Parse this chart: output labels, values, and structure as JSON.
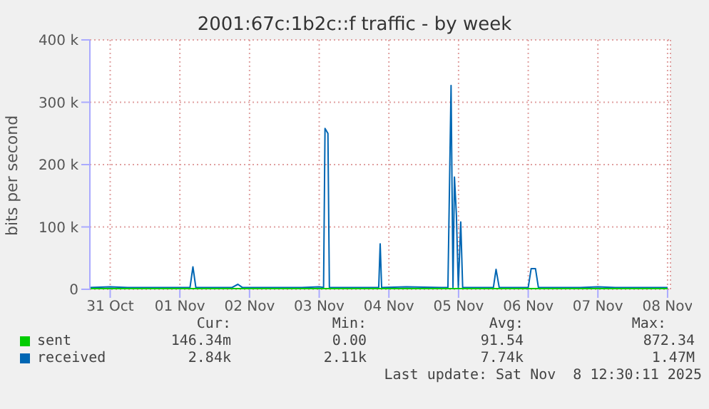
{
  "chart_data": {
    "type": "line",
    "title": "2001:67c:1b2c::f traffic - by week",
    "ylabel": "bits per second",
    "xlim": [
      "2025-10-31T05:00",
      "2025-11-08T13:00"
    ],
    "xticks": [
      {
        "value": "2025-10-31T12:00",
        "label": "31 Oct"
      },
      {
        "value": "2025-11-01T12:00",
        "label": "01 Nov"
      },
      {
        "value": "2025-11-02T12:00",
        "label": "02 Nov"
      },
      {
        "value": "2025-11-03T12:00",
        "label": "03 Nov"
      },
      {
        "value": "2025-11-04T12:00",
        "label": "04 Nov"
      },
      {
        "value": "2025-11-05T12:00",
        "label": "05 Nov"
      },
      {
        "value": "2025-11-06T12:00",
        "label": "06 Nov"
      },
      {
        "value": "2025-11-07T12:00",
        "label": "07 Nov"
      },
      {
        "value": "2025-11-08T12:00",
        "label": "08 Nov"
      }
    ],
    "ylim": [
      0,
      400000
    ],
    "yticks": [
      {
        "value": 0,
        "label": "0"
      },
      {
        "value": 100000,
        "label": "100 k"
      },
      {
        "value": 200000,
        "label": "200 k"
      },
      {
        "value": 300000,
        "label": "300 k"
      },
      {
        "value": 400000,
        "label": "400 k"
      }
    ],
    "grid": true,
    "legend": "bottom left",
    "marker": "none",
    "line_style": "solid",
    "x": [
      "2025-10-31T05:00",
      "2025-10-31T12:00",
      "2025-10-31T18:00",
      "2025-11-01T00:00",
      "2025-11-01T12:00",
      "2025-11-01T15:30",
      "2025-11-01T16:30",
      "2025-11-01T17:30",
      "2025-11-01T22:00",
      "2025-11-02T06:00",
      "2025-11-02T08:00",
      "2025-11-02T09:30",
      "2025-11-02T18:00",
      "2025-11-03T06:00",
      "2025-11-03T12:00",
      "2025-11-03T13:30",
      "2025-11-03T14:00",
      "2025-11-03T15:00",
      "2025-11-03T15:30",
      "2025-11-03T22:00",
      "2025-11-04T06:00",
      "2025-11-04T08:30",
      "2025-11-04T09:00",
      "2025-11-04T09:30",
      "2025-11-04T18:00",
      "2025-11-05T06:00",
      "2025-11-05T08:20",
      "2025-11-05T09:25",
      "2025-11-05T10:05",
      "2025-11-05T10:35",
      "2025-11-05T11:15",
      "2025-11-05T11:55",
      "2025-11-05T12:45",
      "2025-11-05T13:25",
      "2025-11-05T18:00",
      "2025-11-06T00:00",
      "2025-11-06T00:55",
      "2025-11-06T02:00",
      "2025-11-06T12:00",
      "2025-11-06T13:00",
      "2025-11-06T14:30",
      "2025-11-06T15:30",
      "2025-11-06T20:00",
      "2025-11-07T06:00",
      "2025-11-07T12:00",
      "2025-11-07T18:00",
      "2025-11-08T06:00",
      "2025-11-08T12:00"
    ],
    "series": [
      {
        "name": "sent",
        "color": "#00cc00",
        "values": [
          0,
          0,
          0,
          0,
          0,
          0,
          0,
          0,
          0,
          0,
          0,
          0,
          0,
          0,
          0,
          0,
          0,
          0,
          0,
          0,
          0,
          0,
          0,
          0,
          0,
          0,
          0,
          0,
          0,
          0,
          0,
          0,
          0,
          0,
          0,
          0,
          0,
          0,
          0,
          0,
          0,
          0,
          0,
          0,
          0,
          0,
          0,
          0
        ]
      },
      {
        "name": "received",
        "color": "#0066b3",
        "values": [
          3000,
          4000,
          3000,
          3000,
          3000,
          3000,
          36000,
          3000,
          3000,
          3000,
          8000,
          3000,
          3000,
          3000,
          4000,
          3000,
          258000,
          250000,
          3000,
          3000,
          3000,
          3000,
          73000,
          3000,
          4000,
          3000,
          3000,
          327000,
          3000,
          180000,
          120000,
          3000,
          108000,
          3000,
          3000,
          3000,
          32000,
          3000,
          3000,
          33000,
          33000,
          3000,
          3000,
          3000,
          4000,
          3000,
          3000,
          3000
        ]
      }
    ],
    "annotations": [
      "Cur:",
      "Min:",
      "Avg:",
      "Max:",
      "146.34m",
      "0.00",
      "91.54",
      "872.34",
      "2.84k",
      "2.11k",
      "7.74k",
      "1.47M",
      "Last update: Sat Nov  8 12:30:11 2025"
    ]
  }
}
